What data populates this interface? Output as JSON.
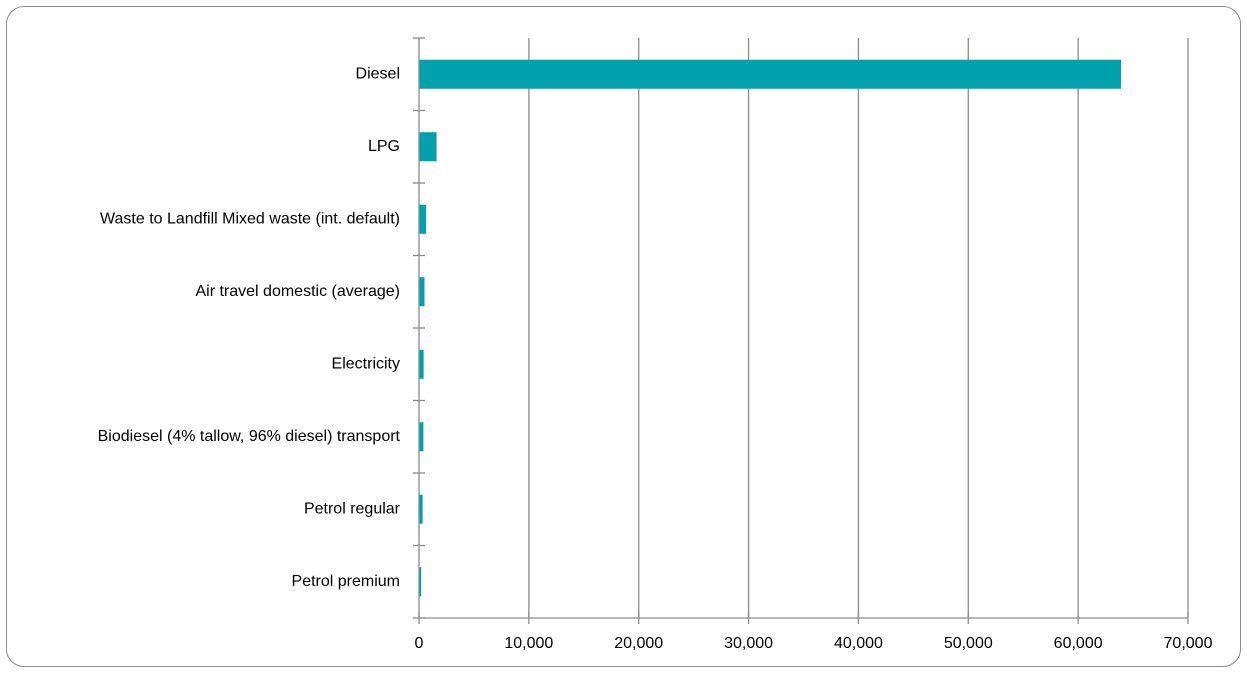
{
  "chart_data": {
    "type": "bar",
    "orientation": "horizontal",
    "categories": [
      "Diesel",
      "LPG",
      "Waste to Landfill Mixed waste (int. default)",
      "Air travel domestic (average)",
      "Electricity",
      "Biodiesel (4% tallow, 96% diesel) transport",
      "Petrol regular",
      "Petrol premium"
    ],
    "values": [
      63900,
      1600,
      650,
      500,
      420,
      400,
      330,
      200
    ],
    "xlim": [
      0,
      70000
    ],
    "xticks": [
      0,
      10000,
      20000,
      30000,
      40000,
      50000,
      60000,
      70000
    ],
    "xtick_labels": [
      "0",
      "10,000",
      "20,000",
      "30,000",
      "40,000",
      "50,000",
      "60,000",
      "70,000"
    ],
    "title": "",
    "xlabel": "",
    "ylabel": "",
    "grid": "vertical",
    "legend": "none",
    "bar_color": "#00A0AC",
    "grid_color": "#8c8c8c"
  }
}
